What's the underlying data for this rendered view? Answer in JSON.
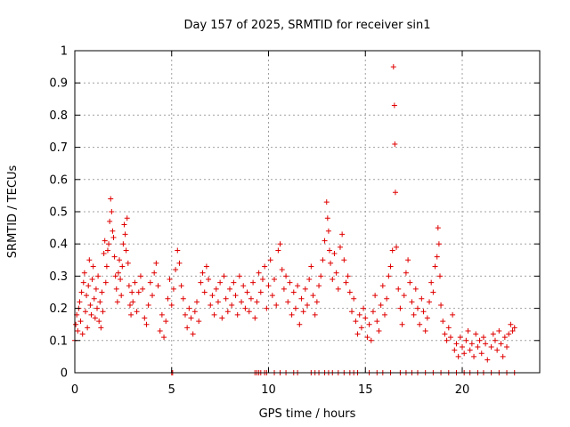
{
  "chart_data": {
    "type": "scatter",
    "title": "Day 157 of 2025, SRMTID for receiver sin1",
    "xlabel": "GPS time / hours",
    "ylabel": "SRMTID / TECUs",
    "xlim": [
      0,
      24
    ],
    "ylim": [
      0,
      1
    ],
    "grid": true,
    "marker": "+",
    "color": "#e00000",
    "xticks": [
      0,
      5,
      10,
      15,
      20
    ],
    "xtick_labels": [
      "0",
      "5",
      "10",
      "15",
      "20"
    ],
    "yticks": [
      0,
      0.1,
      0.2,
      0.3,
      0.4,
      0.5,
      0.6,
      0.7,
      0.8,
      0.9,
      1
    ],
    "ytick_labels": [
      "0",
      "0.1",
      "0.2",
      "0.3",
      "0.4",
      "0.5",
      "0.6",
      "0.7",
      "0.8",
      "0.9",
      "1"
    ],
    "series": [
      {
        "name": "SRMTID sin1",
        "points": [
          [
            0.0,
            0.1
          ],
          [
            0.05,
            0.15
          ],
          [
            0.1,
            0.18
          ],
          [
            0.15,
            0.13
          ],
          [
            0.2,
            0.2
          ],
          [
            0.25,
            0.22
          ],
          [
            0.3,
            0.16
          ],
          [
            0.35,
            0.25
          ],
          [
            0.4,
            0.12
          ],
          [
            0.45,
            0.28
          ],
          [
            0.5,
            0.31
          ],
          [
            0.55,
            0.19
          ],
          [
            0.6,
            0.24
          ],
          [
            0.65,
            0.14
          ],
          [
            0.7,
            0.27
          ],
          [
            0.75,
            0.35
          ],
          [
            0.8,
            0.21
          ],
          [
            0.85,
            0.18
          ],
          [
            0.9,
            0.29
          ],
          [
            0.95,
            0.33
          ],
          [
            1.0,
            0.23
          ],
          [
            1.05,
            0.17
          ],
          [
            1.1,
            0.26
          ],
          [
            1.15,
            0.2
          ],
          [
            1.2,
            0.3
          ],
          [
            1.25,
            0.16
          ],
          [
            1.3,
            0.22
          ],
          [
            1.35,
            0.14
          ],
          [
            1.4,
            0.25
          ],
          [
            1.45,
            0.19
          ],
          [
            1.5,
            0.37
          ],
          [
            1.55,
            0.41
          ],
          [
            1.6,
            0.28
          ],
          [
            1.65,
            0.33
          ],
          [
            1.7,
            0.38
          ],
          [
            1.75,
            0.4
          ],
          [
            1.8,
            0.47
          ],
          [
            1.85,
            0.54
          ],
          [
            1.9,
            0.5
          ],
          [
            1.95,
            0.44
          ],
          [
            2.0,
            0.42
          ],
          [
            2.05,
            0.36
          ],
          [
            2.1,
            0.3
          ],
          [
            2.15,
            0.26
          ],
          [
            2.2,
            0.22
          ],
          [
            2.25,
            0.31
          ],
          [
            2.3,
            0.35
          ],
          [
            2.35,
            0.29
          ],
          [
            2.4,
            0.24
          ],
          [
            2.45,
            0.33
          ],
          [
            2.5,
            0.4
          ],
          [
            2.55,
            0.46
          ],
          [
            2.6,
            0.43
          ],
          [
            2.65,
            0.38
          ],
          [
            2.7,
            0.48
          ],
          [
            2.75,
            0.34
          ],
          [
            2.8,
            0.27
          ],
          [
            2.85,
            0.21
          ],
          [
            2.9,
            0.18
          ],
          [
            2.95,
            0.25
          ],
          [
            3.0,
            0.22
          ],
          [
            3.1,
            0.28
          ],
          [
            3.2,
            0.19
          ],
          [
            3.3,
            0.25
          ],
          [
            3.4,
            0.3
          ],
          [
            3.5,
            0.26
          ],
          [
            3.6,
            0.17
          ],
          [
            3.7,
            0.15
          ],
          [
            3.8,
            0.21
          ],
          [
            3.9,
            0.28
          ],
          [
            4.0,
            0.24
          ],
          [
            4.1,
            0.31
          ],
          [
            4.2,
            0.34
          ],
          [
            4.3,
            0.27
          ],
          [
            4.4,
            0.13
          ],
          [
            4.5,
            0.18
          ],
          [
            4.6,
            0.11
          ],
          [
            4.7,
            0.16
          ],
          [
            4.8,
            0.23
          ],
          [
            4.9,
            0.29
          ],
          [
            5.0,
            0.21
          ],
          [
            5.1,
            0.26
          ],
          [
            5.2,
            0.32
          ],
          [
            5.3,
            0.38
          ],
          [
            5.4,
            0.34
          ],
          [
            5.5,
            0.27
          ],
          [
            5.6,
            0.23
          ],
          [
            5.7,
            0.18
          ],
          [
            5.8,
            0.14
          ],
          [
            5.9,
            0.2
          ],
          [
            6.0,
            0.17
          ],
          [
            6.1,
            0.12
          ],
          [
            6.2,
            0.19
          ],
          [
            6.3,
            0.22
          ],
          [
            6.4,
            0.16
          ],
          [
            6.5,
            0.28
          ],
          [
            6.6,
            0.31
          ],
          [
            6.7,
            0.25
          ],
          [
            6.8,
            0.33
          ],
          [
            6.9,
            0.29
          ],
          [
            7.0,
            0.21
          ],
          [
            7.1,
            0.24
          ],
          [
            7.2,
            0.18
          ],
          [
            7.3,
            0.26
          ],
          [
            7.4,
            0.22
          ],
          [
            7.5,
            0.28
          ],
          [
            7.6,
            0.17
          ],
          [
            7.7,
            0.3
          ],
          [
            7.8,
            0.23
          ],
          [
            7.9,
            0.19
          ],
          [
            8.0,
            0.26
          ],
          [
            8.1,
            0.21
          ],
          [
            8.2,
            0.28
          ],
          [
            8.3,
            0.24
          ],
          [
            8.4,
            0.18
          ],
          [
            8.5,
            0.3
          ],
          [
            8.6,
            0.22
          ],
          [
            8.7,
            0.27
          ],
          [
            8.8,
            0.2
          ],
          [
            8.9,
            0.25
          ],
          [
            9.0,
            0.19
          ],
          [
            9.1,
            0.23
          ],
          [
            9.2,
            0.28
          ],
          [
            9.3,
            0.17
          ],
          [
            9.4,
            0.22
          ],
          [
            9.5,
            0.31
          ],
          [
            9.6,
            0.25
          ],
          [
            9.7,
            0.29
          ],
          [
            9.8,
            0.33
          ],
          [
            9.9,
            0.2
          ],
          [
            10.0,
            0.27
          ],
          [
            10.1,
            0.35
          ],
          [
            10.2,
            0.24
          ],
          [
            10.3,
            0.29
          ],
          [
            10.4,
            0.21
          ],
          [
            10.5,
            0.38
          ],
          [
            10.6,
            0.4
          ],
          [
            10.7,
            0.32
          ],
          [
            10.8,
            0.26
          ],
          [
            10.9,
            0.3
          ],
          [
            11.0,
            0.22
          ],
          [
            11.1,
            0.28
          ],
          [
            11.2,
            0.18
          ],
          [
            11.3,
            0.25
          ],
          [
            11.4,
            0.2
          ],
          [
            11.5,
            0.27
          ],
          [
            11.6,
            0.15
          ],
          [
            11.7,
            0.23
          ],
          [
            11.8,
            0.19
          ],
          [
            11.9,
            0.26
          ],
          [
            12.0,
            0.21
          ],
          [
            12.1,
            0.29
          ],
          [
            12.2,
            0.33
          ],
          [
            12.3,
            0.24
          ],
          [
            12.4,
            0.18
          ],
          [
            12.5,
            0.22
          ],
          [
            12.6,
            0.27
          ],
          [
            12.7,
            0.3
          ],
          [
            12.8,
            0.35
          ],
          [
            12.9,
            0.41
          ],
          [
            13.0,
            0.53
          ],
          [
            13.05,
            0.48
          ],
          [
            13.1,
            0.44
          ],
          [
            13.15,
            0.38
          ],
          [
            13.2,
            0.34
          ],
          [
            13.3,
            0.29
          ],
          [
            13.4,
            0.37
          ],
          [
            13.5,
            0.31
          ],
          [
            13.6,
            0.26
          ],
          [
            13.7,
            0.39
          ],
          [
            13.8,
            0.43
          ],
          [
            13.9,
            0.35
          ],
          [
            14.0,
            0.28
          ],
          [
            14.1,
            0.3
          ],
          [
            14.2,
            0.25
          ],
          [
            14.3,
            0.19
          ],
          [
            14.4,
            0.23
          ],
          [
            14.5,
            0.16
          ],
          [
            14.6,
            0.12
          ],
          [
            14.7,
            0.18
          ],
          [
            14.8,
            0.14
          ],
          [
            14.9,
            0.2
          ],
          [
            15.0,
            0.17
          ],
          [
            15.1,
            0.11
          ],
          [
            15.2,
            0.15
          ],
          [
            15.3,
            0.1
          ],
          [
            15.4,
            0.19
          ],
          [
            15.5,
            0.24
          ],
          [
            15.6,
            0.16
          ],
          [
            15.7,
            0.13
          ],
          [
            15.8,
            0.21
          ],
          [
            15.9,
            0.27
          ],
          [
            16.0,
            0.18
          ],
          [
            16.1,
            0.23
          ],
          [
            16.2,
            0.3
          ],
          [
            16.3,
            0.33
          ],
          [
            16.4,
            0.38
          ],
          [
            16.45,
            0.95
          ],
          [
            16.5,
            0.83
          ],
          [
            16.52,
            0.71
          ],
          [
            16.55,
            0.56
          ],
          [
            16.6,
            0.39
          ],
          [
            16.7,
            0.26
          ],
          [
            16.8,
            0.2
          ],
          [
            16.9,
            0.15
          ],
          [
            17.0,
            0.24
          ],
          [
            17.1,
            0.31
          ],
          [
            17.2,
            0.35
          ],
          [
            17.3,
            0.28
          ],
          [
            17.4,
            0.22
          ],
          [
            17.5,
            0.18
          ],
          [
            17.6,
            0.26
          ],
          [
            17.7,
            0.2
          ],
          [
            17.8,
            0.15
          ],
          [
            17.9,
            0.23
          ],
          [
            18.0,
            0.19
          ],
          [
            18.1,
            0.13
          ],
          [
            18.2,
            0.17
          ],
          [
            18.3,
            0.22
          ],
          [
            18.4,
            0.28
          ],
          [
            18.5,
            0.25
          ],
          [
            18.6,
            0.33
          ],
          [
            18.7,
            0.36
          ],
          [
            18.75,
            0.45
          ],
          [
            18.8,
            0.4
          ],
          [
            18.85,
            0.3
          ],
          [
            18.9,
            0.21
          ],
          [
            19.0,
            0.16
          ],
          [
            19.1,
            0.12
          ],
          [
            19.2,
            0.1
          ],
          [
            19.3,
            0.14
          ],
          [
            19.4,
            0.11
          ],
          [
            19.5,
            0.18
          ],
          [
            19.6,
            0.07
          ],
          [
            19.7,
            0.09
          ],
          [
            19.8,
            0.05
          ],
          [
            19.9,
            0.11
          ],
          [
            20.0,
            0.08
          ],
          [
            20.1,
            0.06
          ],
          [
            20.2,
            0.1
          ],
          [
            20.3,
            0.13
          ],
          [
            20.4,
            0.07
          ],
          [
            20.5,
            0.09
          ],
          [
            20.6,
            0.05
          ],
          [
            20.7,
            0.12
          ],
          [
            20.8,
            0.08
          ],
          [
            20.9,
            0.1
          ],
          [
            21.0,
            0.06
          ],
          [
            21.1,
            0.11
          ],
          [
            21.2,
            0.09
          ],
          [
            21.3,
            0.04
          ],
          [
            21.5,
            0.08
          ],
          [
            21.6,
            0.12
          ],
          [
            21.7,
            0.1
          ],
          [
            21.8,
            0.07
          ],
          [
            21.9,
            0.13
          ],
          [
            22.0,
            0.09
          ],
          [
            22.1,
            0.05
          ],
          [
            22.2,
            0.11
          ],
          [
            22.3,
            0.08
          ],
          [
            22.4,
            0.12
          ],
          [
            22.5,
            0.15
          ],
          [
            22.6,
            0.13
          ],
          [
            22.7,
            0.14
          ]
        ]
      },
      {
        "name": "zero-level markers",
        "points": [
          [
            5.0,
            0
          ],
          [
            5.05,
            0
          ],
          [
            9.3,
            0
          ],
          [
            9.4,
            0
          ],
          [
            9.5,
            0
          ],
          [
            9.6,
            0
          ],
          [
            9.8,
            0
          ],
          [
            9.9,
            0
          ],
          [
            10.3,
            0
          ],
          [
            10.6,
            0
          ],
          [
            10.9,
            0
          ],
          [
            11.3,
            0
          ],
          [
            11.5,
            0
          ],
          [
            12.2,
            0
          ],
          [
            12.4,
            0
          ],
          [
            12.6,
            0
          ],
          [
            12.9,
            0
          ],
          [
            13.1,
            0
          ],
          [
            13.3,
            0
          ],
          [
            13.6,
            0
          ],
          [
            13.9,
            0
          ],
          [
            14.2,
            0
          ],
          [
            14.4,
            0
          ],
          [
            14.6,
            0
          ],
          [
            15.2,
            0
          ],
          [
            15.6,
            0
          ],
          [
            15.9,
            0
          ],
          [
            16.3,
            0
          ],
          [
            16.8,
            0
          ],
          [
            17.1,
            0
          ],
          [
            17.4,
            0
          ],
          [
            17.7,
            0
          ],
          [
            18.1,
            0
          ],
          [
            18.5,
            0
          ],
          [
            18.9,
            0
          ],
          [
            19.3,
            0
          ],
          [
            19.7,
            0
          ],
          [
            20.1,
            0
          ],
          [
            20.4,
            0
          ],
          [
            20.8,
            0
          ],
          [
            21.1,
            0
          ],
          [
            21.5,
            0
          ],
          [
            21.9,
            0
          ],
          [
            22.3,
            0
          ],
          [
            22.7,
            0
          ]
        ]
      }
    ]
  }
}
